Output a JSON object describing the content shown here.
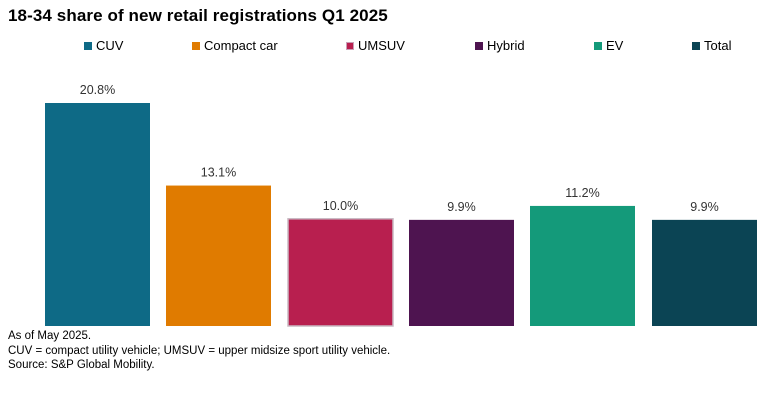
{
  "chart_data": {
    "type": "bar",
    "title": "18-34 share of new retail registrations Q1 2025",
    "categories": [
      "CUV",
      "Compact car",
      "UMSUV",
      "Hybrid",
      "EV",
      "Total"
    ],
    "values": [
      20.8,
      13.1,
      10.0,
      9.9,
      11.2,
      9.9
    ],
    "value_labels": [
      "20.8%",
      "13.1%",
      "10.0%",
      "9.9%",
      "11.2%",
      "9.9%"
    ],
    "colors": [
      "#0e6a86",
      "#e07b00",
      "#b81f4f",
      "#4e1450",
      "#149a7a",
      "#0b4454"
    ],
    "legend": [
      {
        "label": "CUV",
        "color": "#0e6a86"
      },
      {
        "label": "Compact car",
        "color": "#e07b00"
      },
      {
        "label": "UMSUV",
        "color": "#b81f4f"
      },
      {
        "label": "Hybrid",
        "color": "#4e1450"
      },
      {
        "label": "EV",
        "color": "#149a7a"
      },
      {
        "label": "Total",
        "color": "#0b4454"
      }
    ],
    "legend_position": "top",
    "ylim": [
      0,
      20.8
    ],
    "xlabel": "",
    "ylabel": "",
    "grid": false
  },
  "footnotes": [
    "As of May 2025.",
    "CUV = compact utility vehicle; UMSUV = upper midsize sport utility vehicle.",
    "Source: S&P Global Mobility."
  ]
}
